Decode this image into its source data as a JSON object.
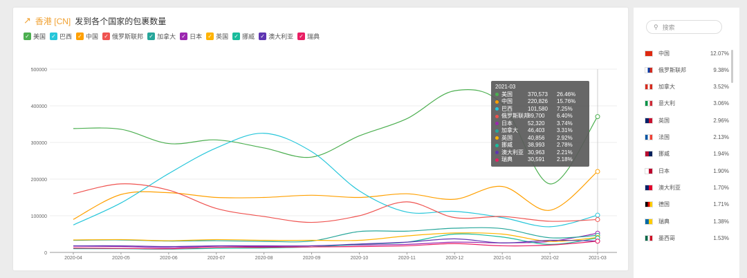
{
  "header": {
    "trend_icon": "trend-line-icon",
    "origin": "香港 [CN]",
    "title": "发到各个国家的包裹数量"
  },
  "legend": [
    {
      "name": "美国",
      "color": "#4caf50"
    },
    {
      "name": "巴西",
      "color": "#26c6da"
    },
    {
      "name": "中国",
      "color": "#ffa000"
    },
    {
      "name": "俄罗斯联邦",
      "color": "#ef5350"
    },
    {
      "name": "加拿大",
      "color": "#26a69a"
    },
    {
      "name": "日本",
      "color": "#9c27b0"
    },
    {
      "name": "英国",
      "color": "#ffb300"
    },
    {
      "name": "挪威",
      "color": "#1abc9c"
    },
    {
      "name": "澳大利亚",
      "color": "#5e35b1"
    },
    {
      "name": "瑞典",
      "color": "#e91e63"
    }
  ],
  "chart_data": {
    "type": "line",
    "categories": [
      "2020-04",
      "2020-05",
      "2020-06",
      "2020-07",
      "2020-08",
      "2020-09",
      "2020-10",
      "2020-11",
      "2020-12",
      "2021-01",
      "2021-02",
      "2021-03"
    ],
    "ylim": [
      0,
      500000
    ],
    "yticks": [
      "0",
      "100000",
      "200000",
      "300000",
      "400000",
      "500000"
    ],
    "grid": true,
    "series": [
      {
        "name": "美国",
        "values": [
          338000,
          336000,
          297000,
          307000,
          285000,
          260000,
          318000,
          365000,
          441000,
          405000,
          187000,
          370573
        ]
      },
      {
        "name": "中国",
        "values": [
          90000,
          158000,
          163000,
          150000,
          150000,
          156000,
          150000,
          160000,
          145000,
          180000,
          115000,
          220826
        ]
      },
      {
        "name": "巴西",
        "values": [
          75000,
          135000,
          215000,
          285000,
          325000,
          275000,
          168000,
          110000,
          112000,
          95000,
          70000,
          101580
        ]
      },
      {
        "name": "俄罗斯联邦",
        "values": [
          160000,
          187000,
          170000,
          120000,
          98000,
          82000,
          100000,
          138000,
          95000,
          98000,
          85000,
          89700
        ]
      },
      {
        "name": "日本",
        "values": [
          17000,
          16000,
          13000,
          17000,
          16000,
          18000,
          20000,
          22000,
          28000,
          26000,
          30000,
          52320
        ]
      },
      {
        "name": "加拿大",
        "values": [
          33000,
          34000,
          31000,
          32000,
          30000,
          31000,
          57000,
          58000,
          66000,
          65000,
          40000,
          46403
        ]
      },
      {
        "name": "英国",
        "values": [
          34000,
          35000,
          32000,
          35000,
          33000,
          33000,
          33000,
          45000,
          53000,
          50000,
          30000,
          40856
        ]
      },
      {
        "name": "挪威",
        "values": [
          10000,
          10000,
          9000,
          11000,
          12000,
          15000,
          22000,
          28000,
          50000,
          42000,
          22000,
          38993
        ]
      },
      {
        "name": "澳大利亚",
        "values": [
          18000,
          18000,
          16000,
          18000,
          18000,
          18000,
          23000,
          28000,
          37000,
          26000,
          33000,
          30963
        ]
      },
      {
        "name": "瑞典",
        "values": [
          12000,
          11000,
          10000,
          14000,
          14000,
          15000,
          16000,
          18000,
          24000,
          18000,
          20000,
          30591
        ]
      }
    ]
  },
  "tooltip": {
    "title": "2021-03",
    "rows": [
      {
        "name": "美国",
        "value": "370,573",
        "pct": "26.46%",
        "color": "#4caf50"
      },
      {
        "name": "中国",
        "value": "220,826",
        "pct": "15.76%",
        "color": "#ffa000"
      },
      {
        "name": "巴西",
        "value": "101,580",
        "pct": "7.25%",
        "color": "#26c6da"
      },
      {
        "name": "俄罗斯联邦",
        "value": "89,700",
        "pct": "6.40%",
        "color": "#ef5350"
      },
      {
        "name": "日本",
        "value": "52,320",
        "pct": "3.74%",
        "color": "#9c27b0"
      },
      {
        "name": "加拿大",
        "value": "46,403",
        "pct": "3.31%",
        "color": "#26a69a"
      },
      {
        "name": "英国",
        "value": "40,856",
        "pct": "2.92%",
        "color": "#ffb300"
      },
      {
        "name": "挪威",
        "value": "38,993",
        "pct": "2.78%",
        "color": "#1abc9c"
      },
      {
        "name": "澳大利亚",
        "value": "30,963",
        "pct": "2.21%",
        "color": "#5e35b1"
      },
      {
        "name": "瑞典",
        "value": "30,591",
        "pct": "2.18%",
        "color": "#e91e63"
      }
    ]
  },
  "sidebar": {
    "search_placeholder": "搜索",
    "countries": [
      {
        "name": "中国",
        "pct": "12.07%",
        "flag": [
          "#de2910",
          "#de2910"
        ]
      },
      {
        "name": "俄罗斯联邦",
        "pct": "9.38%",
        "flag": [
          "#ffffff",
          "#0039a6",
          "#d52b1e"
        ]
      },
      {
        "name": "加拿大",
        "pct": "3.52%",
        "flag": [
          "#d52b1e",
          "#ffffff",
          "#d52b1e"
        ]
      },
      {
        "name": "意大利",
        "pct": "3.06%",
        "flag": [
          "#009246",
          "#ffffff",
          "#ce2b37"
        ]
      },
      {
        "name": "英国",
        "pct": "2.96%",
        "flag": [
          "#012169",
          "#c8102e"
        ]
      },
      {
        "name": "法国",
        "pct": "2.13%",
        "flag": [
          "#0055a4",
          "#ffffff",
          "#ef4135"
        ]
      },
      {
        "name": "挪威",
        "pct": "1.94%",
        "flag": [
          "#ba0c2f",
          "#00205b"
        ]
      },
      {
        "name": "日本",
        "pct": "1.90%",
        "flag": [
          "#ffffff",
          "#bc002d"
        ]
      },
      {
        "name": "澳大利亚",
        "pct": "1.70%",
        "flag": [
          "#012169",
          "#e4002b"
        ]
      },
      {
        "name": "德国",
        "pct": "1.71%",
        "flag": [
          "#000000",
          "#dd0000",
          "#ffce00"
        ]
      },
      {
        "name": "瑞典",
        "pct": "1.38%",
        "flag": [
          "#006aa7",
          "#fecc00"
        ]
      },
      {
        "name": "墨西哥",
        "pct": "1.53%",
        "flag": [
          "#006847",
          "#ffffff",
          "#ce1126"
        ]
      }
    ]
  }
}
